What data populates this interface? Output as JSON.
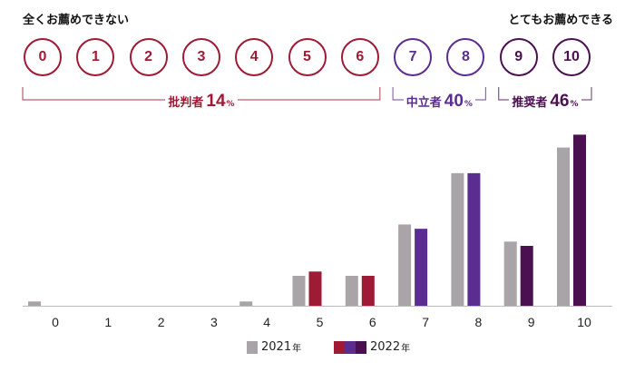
{
  "scale": {
    "left_label": "全くお薦めできない",
    "right_label": "とてもお薦めできる",
    "scores": [
      "0",
      "1",
      "2",
      "3",
      "4",
      "5",
      "6",
      "7",
      "8",
      "9",
      "10"
    ]
  },
  "groups": [
    {
      "name": "批判者",
      "percent": "14",
      "unit": "%",
      "color": "#9e1a35",
      "from": 0,
      "to": 6
    },
    {
      "name": "中立者",
      "percent": "40",
      "unit": "%",
      "color": "#5b2d91",
      "from": 7,
      "to": 8
    },
    {
      "name": "推奨者",
      "percent": "46",
      "unit": "%",
      "color": "#4a1050",
      "from": 9,
      "to": 10
    }
  ],
  "colors": {
    "detractor": "#9e1a35",
    "passive": "#5b2d91",
    "promoter": "#4a1050",
    "previous_year": "#a8a4a8",
    "baseline": "#bbbbbb"
  },
  "legend": {
    "previous": {
      "label": "2021",
      "unit": "年"
    },
    "current": {
      "label": "2022",
      "unit": "年"
    }
  },
  "chart_data": {
    "type": "bar",
    "categories": [
      "0",
      "1",
      "2",
      "3",
      "4",
      "5",
      "6",
      "7",
      "8",
      "9",
      "10"
    ],
    "series": [
      {
        "name": "2021年",
        "values": [
          0.5,
          0,
          0,
          0,
          0.5,
          3.5,
          3.5,
          9.5,
          15.5,
          7.5,
          18.5
        ]
      },
      {
        "name": "2022年",
        "values": [
          0,
          0,
          0,
          0,
          0,
          4,
          3.5,
          9,
          15.5,
          7,
          20
        ]
      }
    ],
    "ylim": [
      0,
      21
    ],
    "grid": false,
    "legend_position": "bottom-center"
  }
}
